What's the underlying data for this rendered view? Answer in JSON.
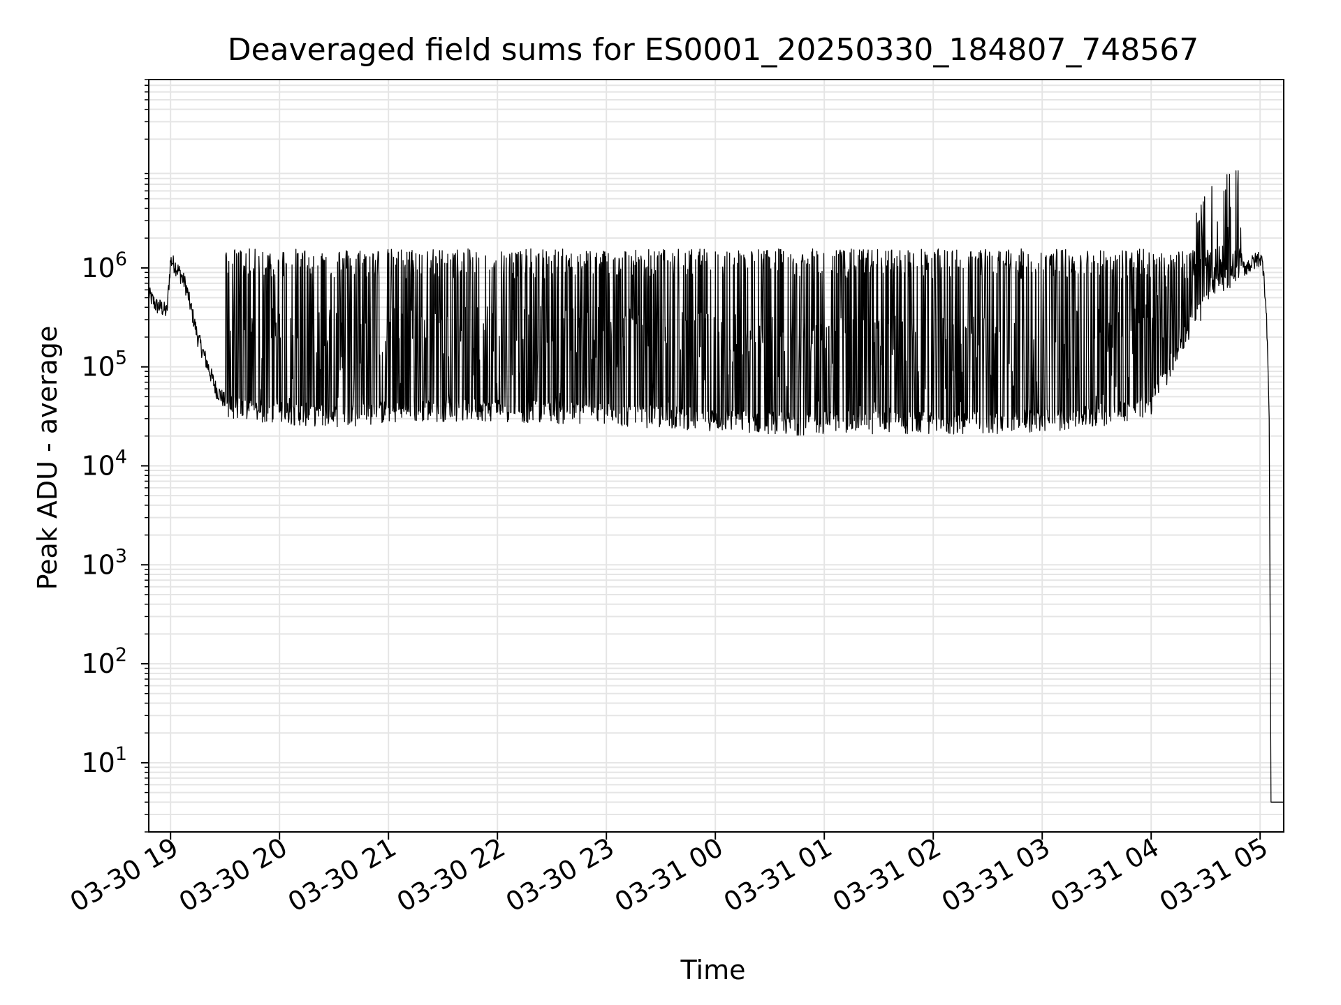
{
  "chart_data": {
    "type": "line",
    "title": "Deaveraged field sums for ES0001_20250330_184807_748567",
    "xlabel": "Time",
    "ylabel": "Peak ADU - average",
    "yscale": "log",
    "ylim": [
      2,
      80000000
    ],
    "xlim": [
      "2025-03-30 18:48",
      "2025-03-31 05:13"
    ],
    "grid": true,
    "line_color": "#000000",
    "grid_color": "#e5e5e5",
    "x_ticks": [
      {
        "t": "2025-03-30 19:00",
        "label": "03-30 19"
      },
      {
        "t": "2025-03-30 20:00",
        "label": "03-30 20"
      },
      {
        "t": "2025-03-30 21:00",
        "label": "03-30 21"
      },
      {
        "t": "2025-03-30 22:00",
        "label": "03-30 22"
      },
      {
        "t": "2025-03-30 23:00",
        "label": "03-30 23"
      },
      {
        "t": "2025-03-31 00:00",
        "label": "03-31 00"
      },
      {
        "t": "2025-03-31 01:00",
        "label": "03-31 01"
      },
      {
        "t": "2025-03-31 02:00",
        "label": "03-31 02"
      },
      {
        "t": "2025-03-31 03:00",
        "label": "03-31 03"
      },
      {
        "t": "2025-03-31 04:00",
        "label": "03-31 04"
      },
      {
        "t": "2025-03-31 05:00",
        "label": "03-31 05"
      }
    ],
    "y_ticks": [
      {
        "value": 10,
        "base": "10",
        "exp": "1"
      },
      {
        "value": 100,
        "base": "10",
        "exp": "2"
      },
      {
        "value": 1000,
        "base": "10",
        "exp": "3"
      },
      {
        "value": 10000,
        "base": "10",
        "exp": "4"
      },
      {
        "value": 100000,
        "base": "10",
        "exp": "5"
      },
      {
        "value": 1000000,
        "base": "10",
        "exp": "6"
      }
    ],
    "series": [
      {
        "x": [
          "2025-03-30 18:48",
          "2025-03-30 18:50",
          "2025-03-30 18:52",
          "2025-03-30 18:55",
          "2025-03-30 18:58",
          "2025-03-30 19:00",
          "2025-03-30 19:02",
          "2025-03-30 19:05",
          "2025-03-30 19:08",
          "2025-03-30 19:10",
          "2025-03-30 19:15",
          "2025-03-30 19:20",
          "2025-03-30 19:25",
          "2025-03-30 19:30",
          "2025-03-30 19:35",
          "2025-03-30 19:40",
          "2025-03-30 19:50",
          "2025-03-30 20:00",
          "2025-03-30 20:15",
          "2025-03-30 20:30",
          "2025-03-30 21:00",
          "2025-03-30 21:30",
          "2025-03-30 22:00",
          "2025-03-30 22:30",
          "2025-03-30 23:00",
          "2025-03-30 23:30",
          "2025-03-31 00:00",
          "2025-03-31 00:30",
          "2025-03-31 00:45",
          "2025-03-31 01:00",
          "2025-03-31 01:30",
          "2025-03-31 02:00",
          "2025-03-31 02:30",
          "2025-03-31 03:00",
          "2025-03-31 03:30",
          "2025-03-31 04:00",
          "2025-03-31 04:20",
          "2025-03-31 04:35",
          "2025-03-31 04:45",
          "2025-03-31 04:55",
          "2025-03-31 05:00",
          "2025-03-31 05:02",
          "2025-03-31 05:04",
          "2025-03-31 05:05",
          "2025-03-31 05:06",
          "2025-03-31 05:13"
        ],
        "y": [
          550000,
          480000,
          420000,
          400000,
          360000,
          1200000,
          1100000,
          900000,
          700000,
          500000,
          200000,
          110000,
          60000,
          45000,
          42000,
          40000,
          38000,
          37000,
          36000,
          35000,
          38000,
          40000,
          40000,
          38000,
          36000,
          34000,
          32000,
          30000,
          29000,
          30000,
          30000,
          29000,
          30000,
          31000,
          35000,
          45000,
          250000,
          700000,
          900000,
          1100000,
          1300000,
          1000000,
          200000,
          30000,
          4,
          4
        ]
      }
    ],
    "spike_envelope": {
      "x": [
        "2025-03-30 19:30",
        "2025-03-31 04:50"
      ],
      "upper_typical": 1300000
    }
  }
}
